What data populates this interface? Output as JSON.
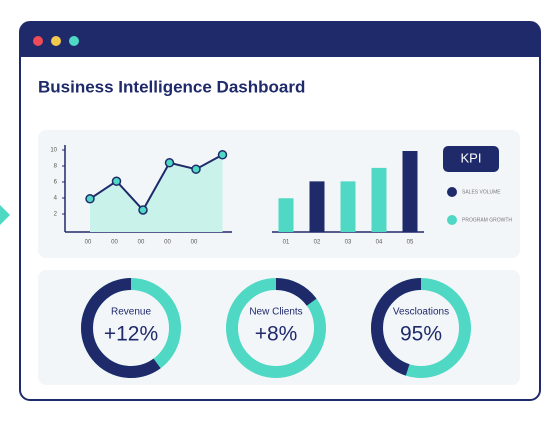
{
  "header": {
    "title": "Business Intelligence Dashboard"
  },
  "line_chart": {
    "type": "line",
    "categories": [
      "00",
      "00",
      "00",
      "00",
      "00",
      null
    ],
    "values": [
      3.9,
      6.1,
      2.5,
      8.4,
      7.6,
      9.4
    ],
    "color": "#1f2a6b",
    "fill": "#c9f3ea",
    "point_color": "#4fd8c4",
    "ylim": [
      0,
      10
    ],
    "yticks": [
      10,
      8,
      6,
      4,
      2
    ]
  },
  "bar_chart": {
    "type": "bar",
    "categories": [
      "01",
      "02",
      "03",
      "04",
      "05"
    ],
    "values": [
      30,
      45,
      45,
      57,
      72
    ],
    "colors": [
      "#4fd8c4",
      "#1f2a6b",
      "#4fd8c4",
      "#4fd8c4",
      "#1f2a6b"
    ],
    "ylim": [
      0,
      80
    ]
  },
  "kpi": {
    "title": "KPI",
    "legend": [
      {
        "name": "SALES VOLUME",
        "color": "#1f2a6b"
      },
      {
        "name": "PROGRAM GROWTH",
        "color": "#4fd8c4"
      }
    ]
  },
  "donuts": [
    {
      "label": "Revenue",
      "value": "+12%",
      "share": 60
    },
    {
      "label": "New Clients",
      "value": "+8%",
      "share": 15
    },
    {
      "label": "Vescloations",
      "value": "95%",
      "share": 45
    }
  ]
}
